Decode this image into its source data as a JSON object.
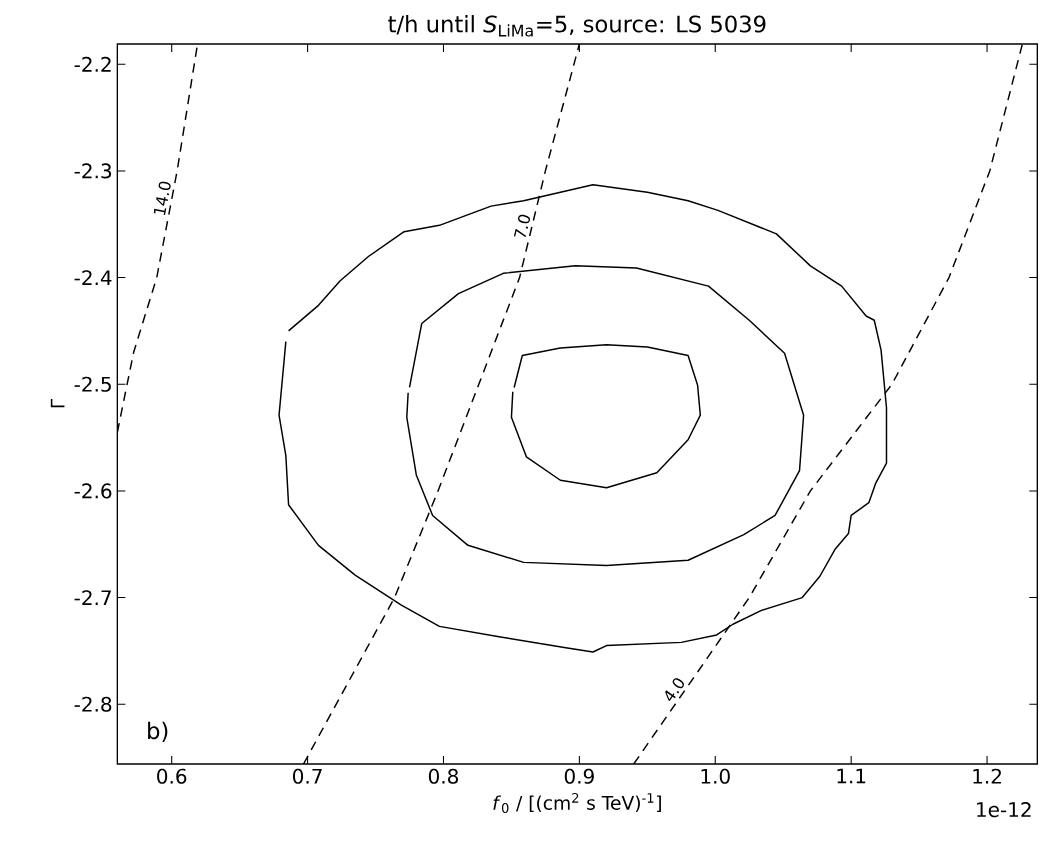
{
  "chart_data": {
    "type": "line",
    "title": "t/h until *S*$_{LiMa}$=5, source: LS 5039",
    "xlabel": "*f*$_{0}$ / [(cm$^{2}$ s TeV)$^{-1}$]",
    "ylabel": "Γ",
    "xlim": [
      0.56,
      1.237
    ],
    "ylim": [
      -2.856,
      -2.181
    ],
    "xticks": [
      0.6,
      0.7,
      0.8,
      0.9,
      {
        "value": 1.0,
        "label": "1.0"
      },
      1.1,
      1.2
    ],
    "yticks": [
      -2.8,
      -2.7,
      -2.6,
      -2.5,
      -2.4,
      -2.3,
      -2.2
    ],
    "annotations": [
      "1e-12",
      "b)"
    ],
    "grid": false,
    "series": [
      {
        "color": "#000000",
        "line_style": "solid",
        "x": [
          0.852,
          0.858,
          0.886,
          0.92,
          0.95,
          0.98,
          0.987,
          0.989,
          0.98,
          0.957,
          0.92,
          0.886,
          0.861,
          0.85,
          0.851
        ],
        "values": [
          -2.503,
          -2.473,
          -2.466,
          -2.463,
          -2.465,
          -2.473,
          -2.501,
          -2.529,
          -2.552,
          -2.583,
          -2.597,
          -2.59,
          -2.568,
          -2.531,
          -2.507
        ]
      },
      {
        "color": "#000000",
        "line_style": "solid",
        "x": [
          0.775,
          0.784,
          0.811,
          0.844,
          0.897,
          0.942,
          0.995,
          1.025,
          1.051,
          1.065,
          1.062,
          1.044,
          1.021,
          0.98,
          0.92,
          0.859,
          0.818,
          0.792,
          0.78,
          0.773,
          0.774
        ],
        "values": [
          -2.503,
          -2.443,
          -2.415,
          -2.396,
          -2.389,
          -2.391,
          -2.408,
          -2.44,
          -2.471,
          -2.529,
          -2.581,
          -2.623,
          -2.641,
          -2.665,
          -2.67,
          -2.667,
          -2.651,
          -2.623,
          -2.585,
          -2.531,
          -2.508
        ]
      },
      {
        "color": "#000000",
        "line_style": "solid",
        "x": [
          0.686,
          0.708,
          0.724,
          0.745,
          0.771,
          0.797,
          0.835,
          0.859,
          0.91,
          0.95,
          0.98,
          1.002,
          1.045,
          1.07,
          1.093,
          1.111,
          1.117,
          1.122,
          1.126,
          1.126,
          1.118,
          1.113,
          1.1,
          1.098,
          1.088,
          1.077,
          1.064,
          1.034,
          1.013,
          1.001,
          0.975,
          0.92,
          0.91,
          0.89,
          0.842,
          0.797,
          0.769,
          0.735,
          0.708,
          0.686,
          0.684,
          0.679,
          0.684
        ],
        "values": [
          -2.45,
          -2.426,
          -2.403,
          -2.38,
          -2.357,
          -2.351,
          -2.333,
          -2.328,
          -2.313,
          -2.32,
          -2.328,
          -2.337,
          -2.359,
          -2.389,
          -2.408,
          -2.436,
          -2.44,
          -2.468,
          -2.522,
          -2.574,
          -2.593,
          -2.611,
          -2.623,
          -2.64,
          -2.655,
          -2.68,
          -2.7,
          -2.712,
          -2.725,
          -2.735,
          -2.742,
          -2.745,
          -2.751,
          -2.747,
          -2.737,
          -2.727,
          -2.707,
          -2.679,
          -2.651,
          -2.613,
          -2.567,
          -2.529,
          -2.46
        ]
      },
      {
        "name": "14.0",
        "color": "#000000",
        "line_style": "dashed",
        "x": [
          0.56,
          0.572,
          0.589,
          0.604,
          0.619
        ],
        "values": [
          -2.545,
          -2.47,
          -2.4,
          -2.3,
          -2.181
        ]
      },
      {
        "name": "7.0",
        "color": "#000000",
        "line_style": "dashed",
        "x": [
          0.697,
          0.764,
          0.796,
          0.826,
          0.856,
          0.875,
          0.9
        ],
        "values": [
          -2.856,
          -2.7,
          -2.6,
          -2.5,
          -2.4,
          -2.3,
          -2.181
        ]
      },
      {
        "name": "4.0",
        "color": "#000000",
        "line_style": "dashed",
        "x": [
          0.94,
          1.025,
          1.07,
          1.13,
          1.172,
          1.202,
          1.226
        ],
        "values": [
          -2.856,
          -2.7,
          -2.6,
          -2.5,
          -2.4,
          -2.3,
          -2.181
        ]
      }
    ]
  }
}
